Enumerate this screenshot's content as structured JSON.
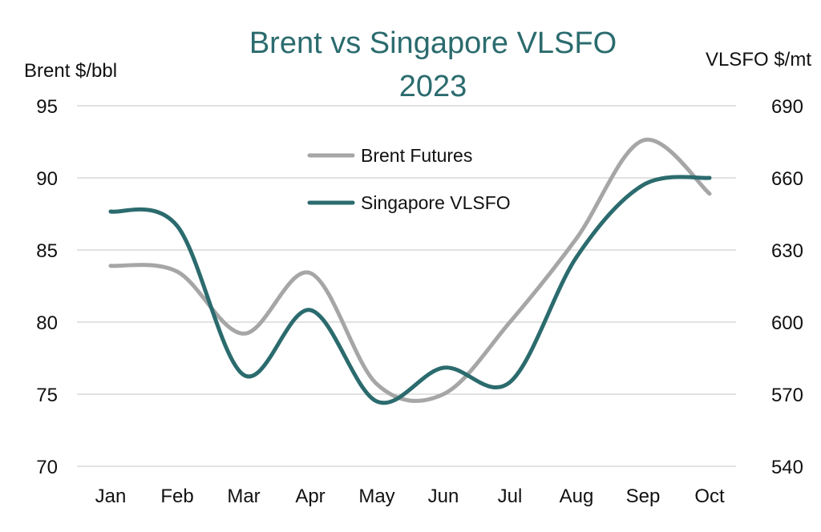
{
  "chart_data": {
    "type": "line",
    "title_lines": [
      "Brent vs Singapore VLSFO",
      "2023"
    ],
    "left_axis": {
      "label": "Brent $/bbl",
      "min": 70,
      "max": 95,
      "ticks": [
        95,
        90,
        85,
        80,
        75,
        70
      ]
    },
    "right_axis": {
      "label": "VLSFO $/mt",
      "min": 540,
      "max": 690,
      "ticks": [
        690,
        660,
        630,
        600,
        570,
        540
      ]
    },
    "categories": [
      "Jan",
      "Feb",
      "Mar",
      "Apr",
      "May",
      "Jun",
      "Jul",
      "Aug",
      "Sep",
      "Oct"
    ],
    "grid": true,
    "legend_position": "top-center",
    "series": [
      {
        "name": "Brent Futures",
        "axis": "left",
        "color": "#a6a6a6",
        "values": [
          83.9,
          83.5,
          79.2,
          83.4,
          75.7,
          75.0,
          80.0,
          85.8,
          92.6,
          88.9
        ]
      },
      {
        "name": "Singapore VLSFO",
        "axis": "right",
        "color": "#2b6b6e",
        "values": [
          646,
          640,
          578,
          605,
          567,
          581,
          575,
          627,
          657,
          660
        ]
      }
    ]
  }
}
